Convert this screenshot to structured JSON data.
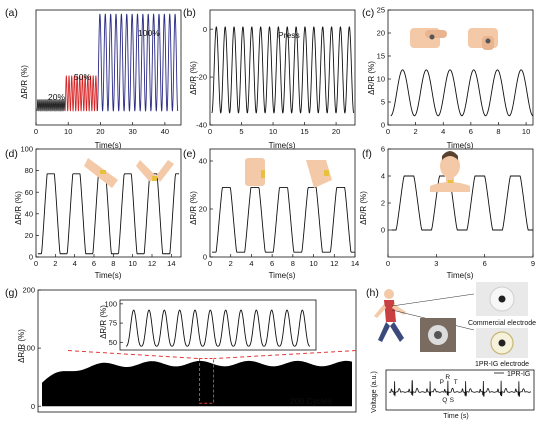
{
  "figure_title": "",
  "chart_data": [
    {
      "panel": "(a)",
      "type": "line",
      "xlabel": "Time(s)",
      "ylabel": "ΔR/R (%)",
      "xlim": [
        0,
        45
      ],
      "ylim": [
        -10,
        130
      ],
      "xticks": [
        0,
        10,
        20,
        30,
        40
      ],
      "yticks": [],
      "annotations": [
        "20%",
        "50%",
        "100%"
      ],
      "series": [
        {
          "name": "20%",
          "color": "#111111",
          "x_range": [
            0.3,
            9
          ],
          "cycles": 14,
          "min": 7,
          "max": 21
        },
        {
          "name": "50%",
          "color": "#d62728",
          "x_range": [
            9,
            19
          ],
          "cycles": 12,
          "min": 7,
          "max": 50
        },
        {
          "name": "100%",
          "color": "#2b2b86",
          "x_range": [
            19,
            44
          ],
          "cycles": 15,
          "min": 7,
          "max": 125
        }
      ]
    },
    {
      "panel": "(b)",
      "type": "line",
      "xlabel": "Time(s)",
      "ylabel": "ΔR/R (%)",
      "xlim": [
        0,
        23
      ],
      "ylim": [
        -40,
        8
      ],
      "xticks": [
        0,
        5,
        10,
        15,
        20
      ],
      "yticks": [
        0,
        -20,
        -40
      ],
      "annotations": [
        "Press"
      ],
      "series": [
        {
          "color": "#111111",
          "x_range": [
            0.3,
            22.8
          ],
          "cycles": 16,
          "min": -35,
          "max": 1
        }
      ]
    },
    {
      "panel": "(c)",
      "type": "line",
      "xlabel": "Time(s)",
      "ylabel": "ΔR/R (%)",
      "xlim": [
        0,
        10.5
      ],
      "ylim": [
        0,
        25
      ],
      "xticks": [
        0,
        2,
        4,
        6,
        8,
        10
      ],
      "yticks": [
        0,
        5,
        10,
        15,
        20,
        25
      ],
      "annotations": [],
      "series": [
        {
          "color": "#111111",
          "x_range": [
            0.2,
            10.5
          ],
          "cycles": 6,
          "min": 2,
          "max": 12
        }
      ]
    },
    {
      "panel": "(d)",
      "type": "line",
      "xlabel": "Time(s)",
      "ylabel": "ΔR/R (%)",
      "xlim": [
        0,
        15
      ],
      "ylim": [
        0,
        100
      ],
      "xticks": [
        0,
        2,
        4,
        6,
        8,
        10,
        12,
        14
      ],
      "yticks": [
        0,
        20,
        40,
        60,
        80,
        100
      ],
      "annotations": [],
      "series": [
        {
          "color": "#111111",
          "x_range": [
            0.2,
            14.8
          ],
          "cycles": 5.5,
          "min": 3,
          "max": 77
        }
      ]
    },
    {
      "panel": "(e)",
      "type": "line",
      "xlabel": "Time(s)",
      "ylabel": "ΔR/R (%)",
      "xlim": [
        0,
        14
      ],
      "ylim": [
        0,
        45
      ],
      "xticks": [
        0,
        2,
        4,
        6,
        8,
        10,
        12,
        14
      ],
      "yticks": [
        0,
        20,
        40
      ],
      "annotations": [],
      "series": [
        {
          "color": "#111111",
          "x_range": [
            0.2,
            14
          ],
          "cycles": 5,
          "min": 2,
          "max": 29
        }
      ]
    },
    {
      "panel": "(f)",
      "type": "line",
      "xlabel": "Time(s)",
      "ylabel": "ΔR/R (%)",
      "xlim": [
        0,
        9
      ],
      "ylim": [
        -2,
        6
      ],
      "xticks": [
        0,
        3,
        6,
        9
      ],
      "yticks": [
        0,
        2,
        4,
        6
      ],
      "annotations": [],
      "series": [
        {
          "color": "#111111",
          "x_range": [
            0.2,
            9
          ],
          "cycles": 4,
          "min": 0,
          "max": 4
        }
      ]
    },
    {
      "panel": "(g)",
      "type": "area",
      "xlabel": "",
      "ylabel": "ΔR/R (%)",
      "ylim": [
        -10,
        200
      ],
      "yticks": [
        0,
        100,
        200
      ],
      "annotations": [
        "200 Cycles"
      ],
      "series": [
        {
          "color": "#000000",
          "min": 0,
          "max": 78,
          "cycles": 200
        }
      ],
      "inset": {
        "ylabel": "ΔR/R (%)",
        "yticks": [
          50,
          75,
          100
        ],
        "ylim": [
          40,
          105
        ],
        "cycles": 12,
        "min": 45,
        "max": 92
      }
    },
    {
      "panel": "(h)",
      "type": "line",
      "xlabel": "Time (s)",
      "ylabel": "Voltage (a.u.)",
      "annotations": [
        "Commercial electrode",
        "1PR-IG electrode",
        "P",
        "R",
        "T",
        "Q",
        "S"
      ],
      "legend": "1PR-IG",
      "series": [
        {
          "name": "1PR-IG",
          "color": "#111111",
          "beats": 8
        }
      ]
    }
  ]
}
